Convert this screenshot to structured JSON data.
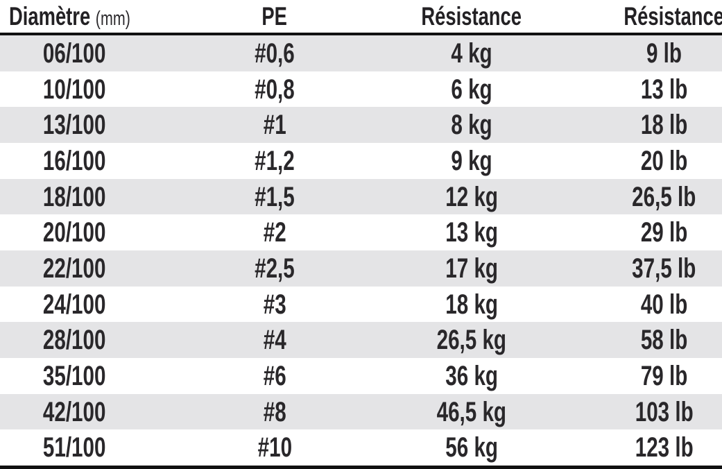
{
  "table": {
    "headers": [
      {
        "label": "Diamètre",
        "sub": "(mm)"
      },
      {
        "label": "PE"
      },
      {
        "label": "Résistance"
      },
      {
        "label": "Résistance"
      }
    ],
    "rows": [
      [
        "06/100",
        "#0,6",
        "4 kg",
        "9 lb"
      ],
      [
        "10/100",
        "#0,8",
        "6 kg",
        "13 lb"
      ],
      [
        "13/100",
        "#1",
        "8 kg",
        "18 lb"
      ],
      [
        "16/100",
        "#1,2",
        "9 kg",
        "20 lb"
      ],
      [
        "18/100",
        "#1,5",
        "12 kg",
        "26,5 lb"
      ],
      [
        "20/100",
        "#2",
        "13 kg",
        "29 lb"
      ],
      [
        "22/100",
        "#2,5",
        "17 kg",
        "37,5 lb"
      ],
      [
        "24/100",
        "#3",
        "18 kg",
        "40 lb"
      ],
      [
        "28/100",
        "#4",
        "26,5 kg",
        "58 lb"
      ],
      [
        "35/100",
        "#6",
        "36 kg",
        "79 lb"
      ],
      [
        "42/100",
        "#8",
        "46,5 kg",
        "103 lb"
      ],
      [
        "51/100",
        "#10",
        "56 kg",
        "123 lb"
      ]
    ]
  },
  "colors": {
    "stripe": "#e4e4e6",
    "text": "#29272a",
    "rule": "#111111",
    "background": "#ffffff"
  }
}
